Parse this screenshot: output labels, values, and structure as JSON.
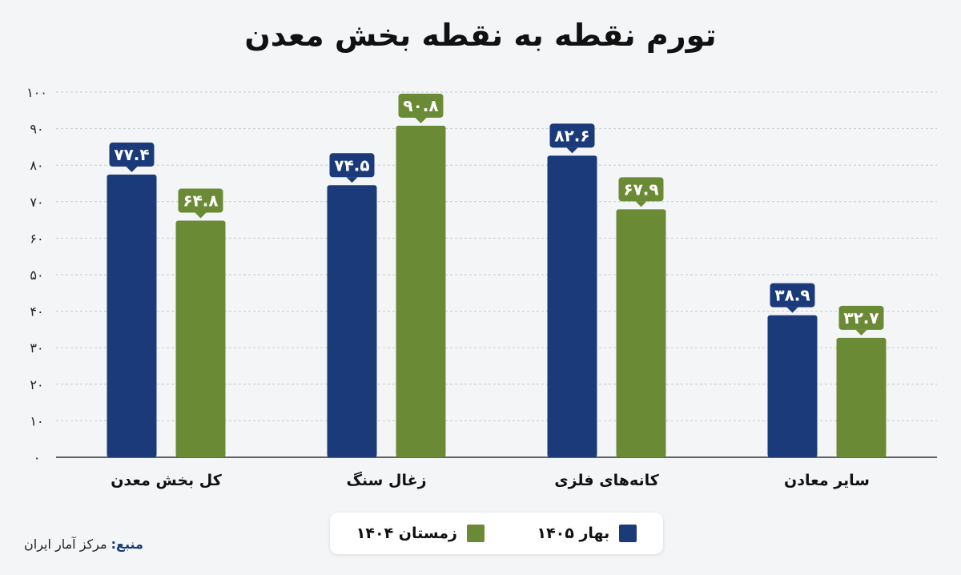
{
  "title": "تورم نقطه به نقطه بخش معدن",
  "source": {
    "label": "منبع:",
    "text": "مرکز آمار ایران"
  },
  "colors": {
    "series1": "#1b3a7a",
    "series2": "#6b8a35",
    "grid": "#c7cbd1",
    "axis": "#333333"
  },
  "legend": [
    {
      "name": "بهار ۱۴۰۵",
      "color": "#1b3a7a"
    },
    {
      "name": "زمستان ۱۴۰۴",
      "color": "#6b8a35"
    }
  ],
  "chart_data": {
    "type": "bar",
    "title": "تورم نقطه به نقطه بخش معدن",
    "categories": [
      "کل بخش معدن",
      "زغال سنگ",
      "کانه‌های فلزی",
      "سایر معادن"
    ],
    "series": [
      {
        "name": "بهار ۱۴۰۵",
        "values": [
          77.4,
          74.5,
          82.6,
          38.9
        ],
        "labels": [
          "۷۷.۴",
          "۷۴.۵",
          "۸۲.۶",
          "۳۸.۹"
        ]
      },
      {
        "name": "زمستان ۱۴۰۴",
        "values": [
          64.8,
          90.8,
          67.9,
          32.7
        ],
        "labels": [
          "۶۴.۸",
          "۹۰.۸",
          "۶۷.۹",
          "۳۲.۷"
        ]
      }
    ],
    "yticks": [
      "۰",
      "۱۰",
      "۲۰",
      "۳۰",
      "۴۰",
      "۵۰",
      "۶۰",
      "۷۰",
      "۸۰",
      "۹۰",
      "۱۰۰"
    ],
    "ylim": [
      0,
      100
    ],
    "grid": true,
    "legend_position": "bottom-center",
    "xlabel": "",
    "ylabel": ""
  }
}
